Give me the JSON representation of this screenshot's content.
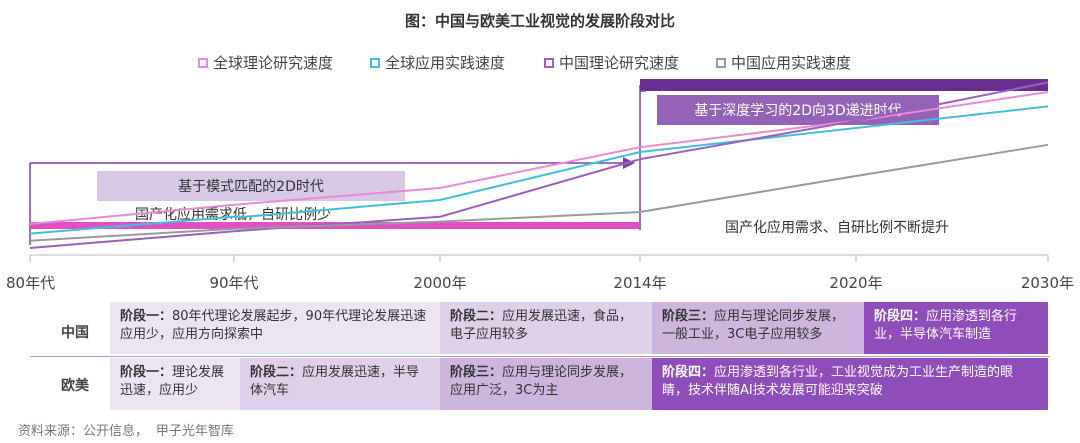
{
  "title": "图：中国与欧美工业视觉的发展阶段对比",
  "legend": [
    {
      "label": "全球理论研究速度",
      "color": "#e88ad6"
    },
    {
      "label": "全球应用实践速度",
      "color": "#42c0da"
    },
    {
      "label": "中国理论研究速度",
      "color": "#9b5fc0"
    },
    {
      "label": "中国应用实践速度",
      "color": "#9a9a9a"
    }
  ],
  "chart_data": {
    "type": "line",
    "x_ticks": [
      "80年代",
      "90年代",
      "2000年",
      "2014年",
      "2020年",
      "2030年"
    ],
    "series": [
      {
        "name": "全球理论研究速度",
        "color": "#e88ad6",
        "points": [
          [
            0,
            1.0
          ],
          [
            1,
            1.8
          ],
          [
            2,
            2.5
          ],
          [
            3,
            4.2
          ],
          [
            4,
            5.3
          ],
          [
            5,
            6.5
          ]
        ]
      },
      {
        "name": "全球应用实践速度",
        "color": "#42c0da",
        "points": [
          [
            0,
            0.6
          ],
          [
            1,
            1.3
          ],
          [
            1.05,
            1.3
          ],
          [
            2,
            2.0
          ],
          [
            3,
            4.0
          ],
          [
            4,
            5.0
          ],
          [
            5,
            5.9
          ]
        ]
      },
      {
        "name": "中国理论研究速度",
        "color": "#9b5fc0",
        "points": [
          [
            0,
            0.0
          ],
          [
            1,
            0.7
          ],
          [
            2,
            1.3
          ],
          [
            3,
            3.7
          ],
          [
            4,
            5.3
          ],
          [
            5,
            6.9
          ]
        ]
      },
      {
        "name": "中国应用实践速度",
        "color": "#9a9a9a",
        "points": [
          [
            0,
            0.3
          ],
          [
            1,
            0.8
          ],
          [
            2,
            1.1
          ],
          [
            3,
            1.5
          ],
          [
            4,
            3.0
          ],
          [
            5,
            4.3
          ]
        ]
      }
    ],
    "china_bar": {
      "from": 0,
      "to": 3,
      "color": "#e04fc4"
    },
    "annotations": {
      "era1": "基于模式匹配的2D时代",
      "era1_note": "国产化应用需求低，自研比例少",
      "era2": "基于深度学习的2D向3D递进时代",
      "era2_note": "国产化应用需求、自研比例不断提升"
    }
  },
  "stages": {
    "china_label": "中国",
    "europe_label": "欧美",
    "china": [
      {
        "title": "阶段一：",
        "text": "80年代理论发展起步，90年代理论发展迅速应用少，应用方向探索中",
        "bg": "#ece4f3"
      },
      {
        "title": "阶段二：",
        "text": "应用发展迅速，食品，电子应用较多",
        "bg": "#dfd0ea"
      },
      {
        "title": "阶段三：",
        "text": "应用与理论同步发展，一般工业，3C电子应用较多",
        "bg": "#cdb5de"
      },
      {
        "title": "阶段四：",
        "text": "应用渗透到各行业，半导体汽车制造",
        "bg": "#8e4db8"
      }
    ],
    "europe": [
      {
        "title": "阶段一：",
        "text": "理论发展迅速，应用少",
        "bg": "#ece4f3"
      },
      {
        "title": "阶段二：",
        "text": "应用发展迅速，半导体汽车",
        "bg": "#dfd0ea"
      },
      {
        "title": "阶段三：",
        "text": "应用与理论同步发展，应用广泛，3C为主",
        "bg": "#cdb5de"
      },
      {
        "title": "阶段四：",
        "text": "应用渗透到各行业，工业视觉成为工业生产制造的眼睛，技术伴随AI技术发展可能迎来突破",
        "bg": "#8e4db8"
      }
    ]
  },
  "source": "资料来源：公开信息，   甲子光年智库"
}
